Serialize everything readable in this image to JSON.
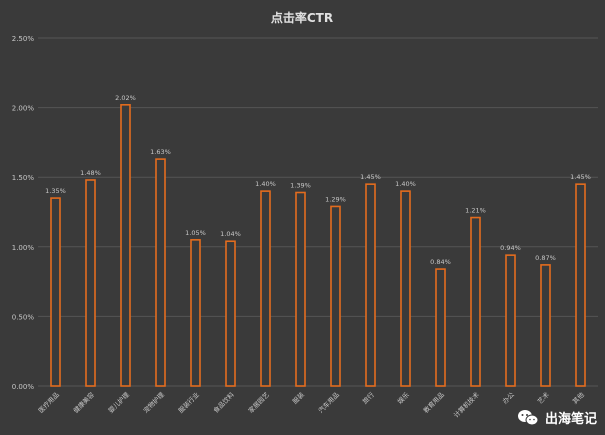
{
  "chart_data": {
    "type": "bar",
    "title": "点击率CTR",
    "xlabel": "",
    "ylabel": "",
    "ylim": [
      0,
      2.5
    ],
    "yticks": [
      "0.00%",
      "0.50%",
      "1.00%",
      "1.50%",
      "2.00%",
      "2.50%"
    ],
    "yticks_values": [
      0,
      0.5,
      1.0,
      1.5,
      2.0,
      2.5
    ],
    "grid": true,
    "categories": [
      "医疗用品",
      "健康美容",
      "婴儿护理",
      "宠物护理",
      "服装行业",
      "食品饮料",
      "家居园艺",
      "服装",
      "汽车用品",
      "旅行",
      "娱乐",
      "教育用品",
      "计算机技术",
      "办公",
      "艺术",
      "其他"
    ],
    "values": [
      1.35,
      1.48,
      2.02,
      1.63,
      1.05,
      1.04,
      1.4,
      1.39,
      1.29,
      1.45,
      1.4,
      0.84,
      1.21,
      0.94,
      0.87,
      1.45
    ],
    "data_labels": [
      "1.35%",
      "1.48%",
      "2.02%",
      "1.63%",
      "1.05%",
      "1.04%",
      "1.40%",
      "1.39%",
      "1.29%",
      "1.45%",
      "1.40%",
      "0.84%",
      "1.21%",
      "0.94%",
      "0.87%",
      "1.45%"
    ],
    "bar_color": "#e36c1e",
    "bar_fill": "#3a3a3a"
  },
  "watermark": {
    "text": "出海笔记"
  },
  "colors": {
    "background": "#3a3a3a",
    "gridline": "#555555",
    "text": "#c8c8c8",
    "title": "#e0e0e0"
  }
}
